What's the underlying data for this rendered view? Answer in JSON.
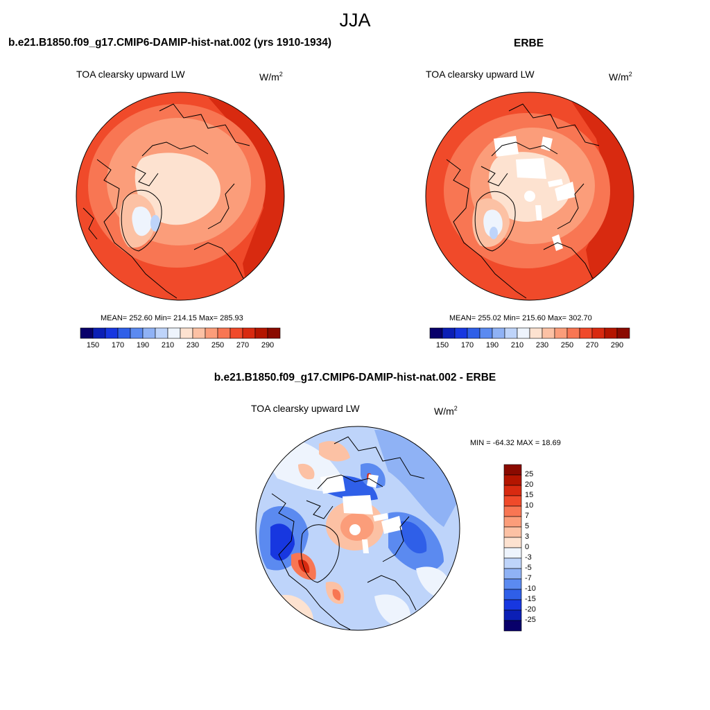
{
  "page": {
    "season": "JJA",
    "model_title": "b.e21.B1850.f09_g17.CMIP6-DAMIP-hist-nat.002 (yrs 1910-1934)",
    "obs_title": "ERBE",
    "diff_title": "b.e21.B1850.f09_g17.CMIP6-DAMIP-hist-nat.002 - ERBE"
  },
  "panels": {
    "model": {
      "variable": "TOA clearsky upward LW",
      "units_base": "W/m",
      "units_exp": "2",
      "stats": "MEAN= 252.60  Min= 214.15  Max= 285.93"
    },
    "obs": {
      "variable": "TOA clearsky upward LW",
      "units_base": "W/m",
      "units_exp": "2",
      "stats": "MEAN= 255.02  Min= 215.60  Max= 302.70"
    },
    "diff": {
      "variable": "TOA clearsky upward LW",
      "units_base": "W/m",
      "units_exp": "2",
      "stats": "MIN = -64.32 MAX =  18.69"
    }
  },
  "colorbar_abs": {
    "tick_labels": [
      "150",
      "170",
      "190",
      "210",
      "230",
      "250",
      "270",
      "290"
    ],
    "colors": [
      "#08006a",
      "#0b1fb5",
      "#1737e0",
      "#2f5fe8",
      "#5b8af0",
      "#8fb2f5",
      "#bed4fa",
      "#eef4fd",
      "#fde2d0",
      "#fcc1a4",
      "#fb9d7a",
      "#f87653",
      "#f04a2a",
      "#d82a10",
      "#b41500",
      "#8a0a00"
    ]
  },
  "colorbar_diff": {
    "tick_labels": [
      "25",
      "20",
      "15",
      "10",
      "7",
      "5",
      "3",
      "0",
      "-3",
      "-5",
      "-7",
      "-10",
      "-15",
      "-20",
      "-25"
    ],
    "colors": [
      "#8a0a00",
      "#b41500",
      "#d82a10",
      "#f04a2a",
      "#f87653",
      "#fb9d7a",
      "#fcc1a4",
      "#fde2d0",
      "#eef4fd",
      "#bed4fa",
      "#8fb2f5",
      "#5b8af0",
      "#2f5fe8",
      "#1737e0",
      "#0b1fb5",
      "#08006a"
    ]
  },
  "chart_data": [
    {
      "type": "heatmap",
      "title": "b.e21.B1850.f09_g17.CMIP6-DAMIP-hist-nat.002 (yrs 1910-1934)",
      "variable": "TOA clearsky upward LW",
      "units": "W/m2",
      "projection": "north polar stereographic",
      "mean": 252.6,
      "min": 214.15,
      "max": 285.93,
      "contour_levels": [
        150,
        160,
        170,
        180,
        190,
        200,
        210,
        220,
        230,
        240,
        250,
        260,
        270,
        280,
        290
      ]
    },
    {
      "type": "heatmap",
      "title": "ERBE",
      "variable": "TOA clearsky upward LW",
      "units": "W/m2",
      "projection": "north polar stereographic",
      "mean": 255.02,
      "min": 215.6,
      "max": 302.7,
      "contour_levels": [
        150,
        160,
        170,
        180,
        190,
        200,
        210,
        220,
        230,
        240,
        250,
        260,
        270,
        280,
        290
      ]
    },
    {
      "type": "heatmap",
      "title": "b.e21.B1850.f09_g17.CMIP6-DAMIP-hist-nat.002 - ERBE",
      "variable": "TOA clearsky upward LW",
      "units": "W/m2",
      "projection": "north polar stereographic",
      "min": -64.32,
      "max": 18.69,
      "contour_levels": [
        -25,
        -20,
        -15,
        -10,
        -7,
        -5,
        -3,
        0,
        3,
        5,
        7,
        10,
        15,
        20,
        25
      ]
    }
  ]
}
